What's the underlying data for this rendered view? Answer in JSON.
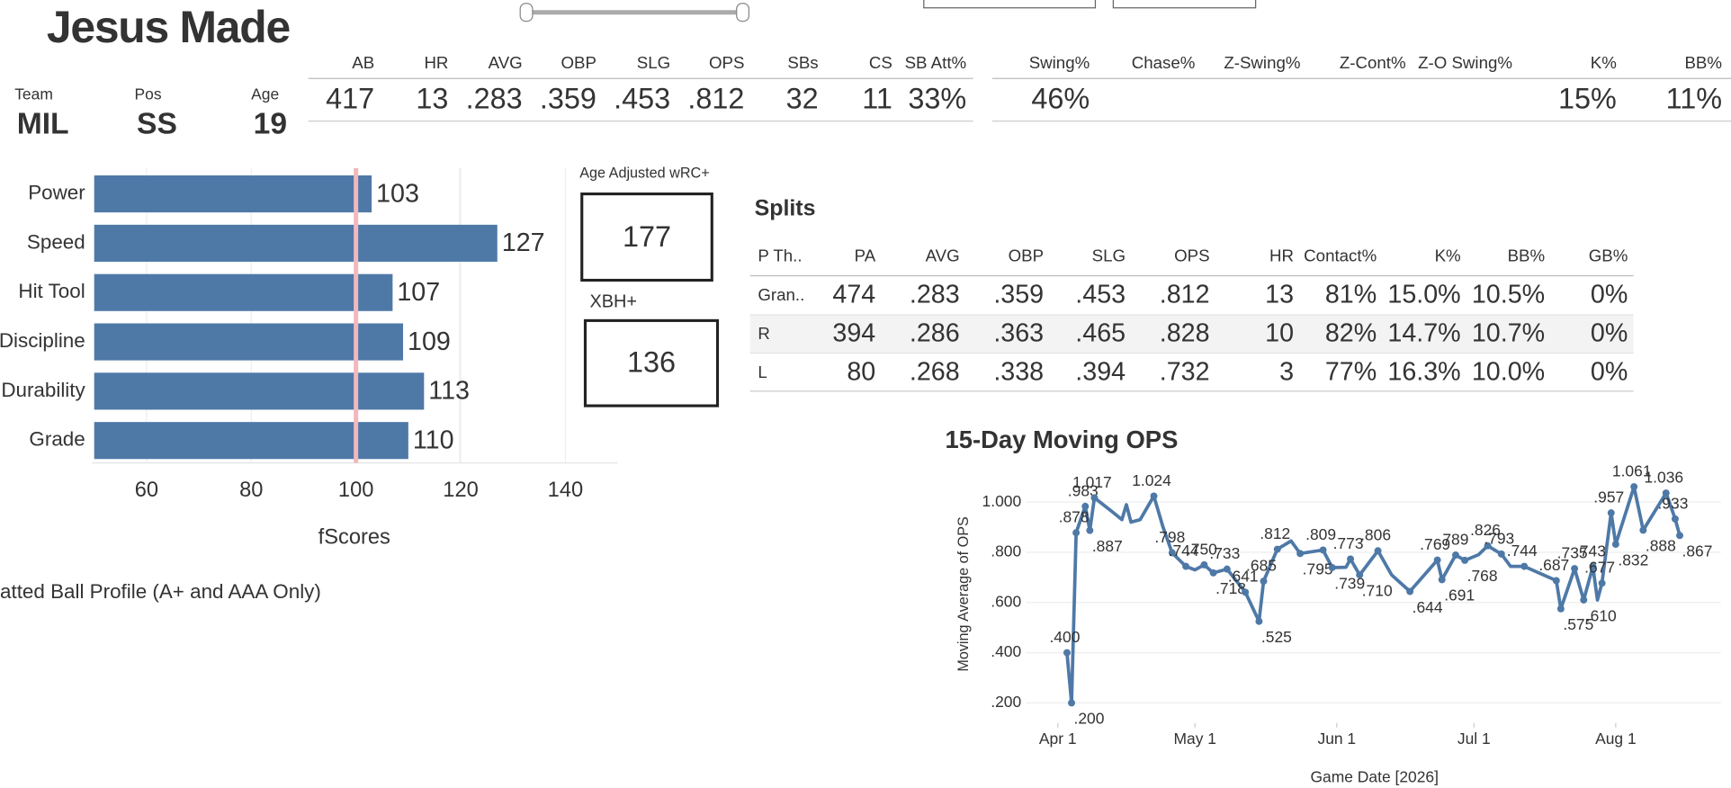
{
  "header": {
    "title": "Jesus Made",
    "fields": [
      {
        "label": "Team",
        "value": "MIL"
      },
      {
        "label": "Pos",
        "value": "SS"
      },
      {
        "label": "Age",
        "value": "19"
      }
    ]
  },
  "batting": {
    "columns": [
      "AB",
      "HR",
      "AVG",
      "OBP",
      "SLG",
      "OPS",
      "SBs",
      "CS",
      "SB Att%"
    ],
    "values": [
      "417",
      "13",
      ".283",
      ".359",
      ".453",
      ".812",
      "32",
      "11",
      "33%"
    ]
  },
  "plate_discipline": {
    "columns": [
      "Swing%",
      "Chase%",
      "Z-Swing%",
      "Z-Cont%",
      "Z-O Swing%",
      "K%",
      "BB%"
    ],
    "values": [
      "46%",
      null,
      null,
      null,
      null,
      "15%",
      "11%"
    ]
  },
  "kpis": [
    {
      "label": "Age Adjusted wRC+",
      "value": "177"
    },
    {
      "label": "XBH+",
      "value": "136"
    }
  ],
  "splits": {
    "title": "Splits",
    "columns": [
      "P Th..",
      "PA",
      "AVG",
      "OBP",
      "SLG",
      "OPS",
      "HR",
      "Contact%",
      "K%",
      "BB%",
      "GB%"
    ],
    "rows": [
      [
        "Gran..",
        "474",
        ".283",
        ".359",
        ".453",
        ".812",
        "13",
        "81%",
        "15.0%",
        "10.5%",
        "0%"
      ],
      [
        "R",
        "394",
        ".286",
        ".363",
        ".465",
        ".828",
        "10",
        "82%",
        "14.7%",
        "10.7%",
        "0%"
      ],
      [
        "L",
        "80",
        ".268",
        ".338",
        ".394",
        ".732",
        "3",
        "77%",
        "16.3%",
        "10.0%",
        "0%"
      ]
    ]
  },
  "batted_ball_title": "atted Ball Profile (A+ and AAA Only)",
  "chart_data": [
    {
      "type": "hbar",
      "categories": [
        "Power",
        "Speed",
        "Hit Tool",
        "Discipline",
        "Durability",
        "Grade"
      ],
      "values": [
        103,
        127,
        107,
        109,
        113,
        110
      ],
      "color": "#4e79a7",
      "xlim": [
        50,
        150
      ],
      "xticks": [
        60,
        80,
        100,
        120,
        140
      ],
      "xlabel": "fScores",
      "reference_line": 100,
      "reference_color": "#f2b8bb",
      "grid": true
    },
    {
      "type": "line",
      "title": "15-Day Moving OPS",
      "xlabel": "Game Date [2026]",
      "ylabel": "Moving Average of OPS",
      "color": "#4e79a7",
      "grid": true,
      "xlim": [
        "2026-03-25",
        "2026-08-24"
      ],
      "xticks": [
        {
          "value": "2026-04-01",
          "label": "Apr 1"
        },
        {
          "value": "2026-05-01",
          "label": "May 1"
        },
        {
          "value": "2026-06-01",
          "label": "Jun 1"
        },
        {
          "value": "2026-07-01",
          "label": "Jul 1"
        },
        {
          "value": "2026-08-01",
          "label": "Aug 1"
        }
      ],
      "ylim": [
        0.12,
        1.08
      ],
      "yticks": [
        {
          "value": 0.2,
          "label": ".200"
        },
        {
          "value": 0.4,
          "label": ".400"
        },
        {
          "value": 0.6,
          "label": ".600"
        },
        {
          "value": 0.8,
          "label": ".800"
        },
        {
          "value": 1.0,
          "label": "1.000"
        }
      ],
      "x": [
        "2026-04-03",
        "2026-04-04",
        "2026-04-05",
        "2026-04-07",
        "2026-04-08",
        "2026-04-09",
        "2026-04-13",
        "2026-04-15",
        "2026-04-16",
        "2026-04-17",
        "2026-04-19",
        "2026-04-22",
        "2026-04-24",
        "2026-04-26",
        "2026-04-29",
        "2026-05-01",
        "2026-05-03",
        "2026-05-05",
        "2026-05-08",
        "2026-05-12",
        "2026-05-15",
        "2026-05-16",
        "2026-05-19",
        "2026-05-22",
        "2026-05-24",
        "2026-05-29",
        "2026-05-31",
        "2026-06-03",
        "2026-06-04",
        "2026-06-06",
        "2026-06-10",
        "2026-06-13",
        "2026-06-17",
        "2026-06-23",
        "2026-06-24",
        "2026-06-27",
        "2026-06-29",
        "2026-07-02",
        "2026-07-04",
        "2026-07-07",
        "2026-07-09",
        "2026-07-12",
        "2026-07-19",
        "2026-07-20",
        "2026-07-23",
        "2026-07-25",
        "2026-07-27",
        "2026-07-28",
        "2026-07-29",
        "2026-07-31",
        "2026-08-01",
        "2026-08-05",
        "2026-08-07",
        "2026-08-12",
        "2026-08-14",
        "2026-08-15"
      ],
      "values": [
        0.4,
        0.2,
        0.878,
        0.983,
        0.887,
        1.017,
        0.96,
        0.93,
        0.99,
        0.92,
        0.93,
        1.024,
        0.9,
        0.798,
        0.744,
        0.73,
        0.75,
        0.718,
        0.733,
        0.641,
        0.525,
        0.685,
        0.812,
        0.845,
        0.795,
        0.809,
        0.739,
        0.74,
        0.773,
        0.71,
        0.806,
        0.71,
        0.644,
        0.769,
        0.691,
        0.789,
        0.768,
        0.79,
        0.826,
        0.793,
        0.744,
        0.744,
        0.687,
        0.575,
        0.735,
        0.61,
        0.743,
        0.61,
        0.677,
        0.957,
        0.832,
        1.061,
        0.888,
        1.036,
        0.933,
        0.867
      ],
      "value_labels": [
        ".400",
        ".200",
        ".878",
        ".983",
        ".887",
        "1.017",
        null,
        null,
        null,
        null,
        null,
        "1.024",
        null,
        ".798",
        ".744",
        null,
        ".750",
        ".718",
        ".733",
        ".641",
        ".525",
        ".685",
        ".812",
        null,
        ".795",
        ".809",
        ".739",
        null,
        ".773",
        ".710",
        ".806",
        null,
        ".644",
        ".769",
        ".691",
        ".789",
        ".768",
        null,
        ".826",
        ".793",
        null,
        ".744",
        ".687",
        ".575",
        ".735",
        ".610",
        ".743",
        null,
        ".677",
        ".957",
        ".832",
        "1.061",
        ".888",
        "1.036",
        ".933",
        ".867"
      ]
    }
  ]
}
